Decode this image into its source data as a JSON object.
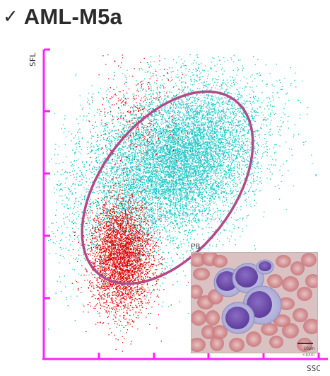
{
  "header": {
    "check_icon": "✓",
    "title": "AML-M5a"
  },
  "chart_data": {
    "type": "scatter",
    "title": "AML-M5a",
    "xlabel": "SSC",
    "ylabel": "SFL",
    "grid": false,
    "series": [
      {
        "color": "#1ec8c8",
        "clusters": [
          {
            "cx": 0.42,
            "cy": 0.62,
            "sx": 0.12,
            "sy": 0.1,
            "rot": 35,
            "n": 9000
          },
          {
            "cx": 0.52,
            "cy": 0.66,
            "sx": 0.08,
            "sy": 0.07,
            "rot": 35,
            "n": 3500
          }
        ]
      },
      {
        "color": "#e00000",
        "clusters": [
          {
            "cx": 0.27,
            "cy": 0.33,
            "sx": 0.035,
            "sy": 0.07,
            "rot": 0,
            "n": 3500
          },
          {
            "cx": 0.33,
            "cy": 0.78,
            "sx": 0.045,
            "sy": 0.07,
            "rot": 20,
            "n": 350
          }
        ]
      }
    ],
    "gate": {
      "shape": "ellipse",
      "color": "#b24a8a"
    }
  },
  "inset": {
    "label": "PB",
    "magnification": "×1000",
    "scale": "10μm"
  },
  "colors": {
    "axis": "#ff22ff",
    "cyan": "#1ec8c8",
    "red": "#e00000",
    "gate": "#b24a8a"
  }
}
